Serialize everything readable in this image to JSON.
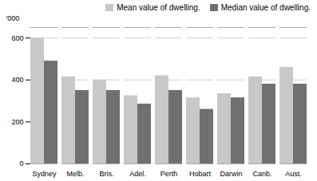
{
  "chart_data": {
    "type": "bar",
    "categories": [
      "Sydney",
      "Melb.",
      "Bris.",
      "Adel.",
      "Perth",
      "Hobart",
      "Darwin",
      "Canb.",
      "Aust."
    ],
    "series": [
      {
        "name": "Mean value of dwelling.",
        "color": "#c8c8c8",
        "values": [
          600,
          415,
          400,
          325,
          420,
          315,
          335,
          415,
          460
        ]
      },
      {
        "name": "Median value of dwelling.",
        "color": "#707070",
        "values": [
          490,
          350,
          350,
          285,
          350,
          260,
          315,
          380,
          380
        ]
      }
    ],
    "ylabel": "'000",
    "ylim": [
      0,
      650
    ],
    "yticks": [
      0,
      200,
      400,
      600
    ],
    "grid": true,
    "legend": "upper right"
  }
}
